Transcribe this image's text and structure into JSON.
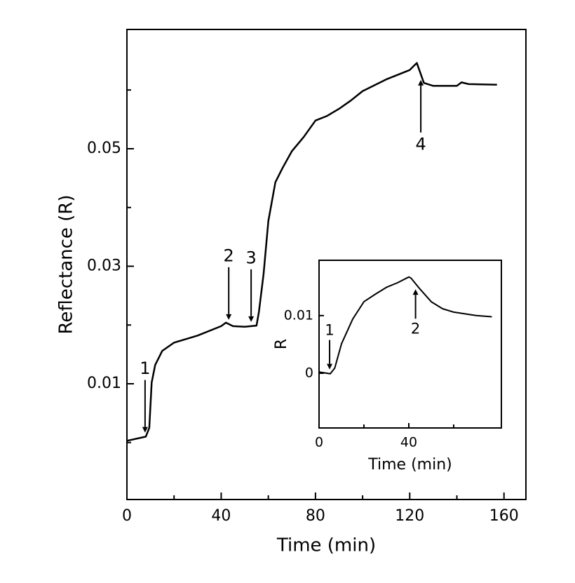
{
  "chart_data": [
    {
      "type": "line",
      "xlabel": "Time (min)",
      "ylabel": "Reflectance (R)",
      "color": "#000000",
      "x": [
        0,
        8,
        9.5,
        10.5,
        12,
        15,
        20,
        30,
        40,
        42,
        45,
        50,
        55,
        56,
        58,
        60,
        63,
        66,
        70,
        75,
        80,
        85,
        90,
        95,
        100,
        110,
        120,
        123,
        126,
        130,
        140,
        142,
        145,
        157
      ],
      "values": [
        0.0003,
        0.001,
        0.0025,
        0.0102,
        0.0132,
        0.0156,
        0.017,
        0.0182,
        0.0198,
        0.0204,
        0.0198,
        0.0197,
        0.0199,
        0.0222,
        0.0287,
        0.0377,
        0.0443,
        0.0467,
        0.0496,
        0.052,
        0.0548,
        0.0556,
        0.0568,
        0.0582,
        0.0598,
        0.0618,
        0.0634,
        0.0646,
        0.0612,
        0.0607,
        0.0607,
        0.0613,
        0.061,
        0.0609
      ],
      "xlim": [
        0,
        169.3
      ],
      "ylim": [
        -0.0097,
        0.0703
      ],
      "xticks": [
        0,
        40,
        80,
        120,
        160
      ],
      "xminorticks": [
        20,
        60,
        100,
        140
      ],
      "yticks": [
        0.01,
        0.03,
        0.05
      ],
      "yminorticks": [
        0,
        0.02,
        0.04,
        0.06
      ],
      "annotations": [
        {
          "text": "1",
          "x": 7.7,
          "arrow": "down"
        },
        {
          "text": "2",
          "x": 43.2,
          "arrow": "down"
        },
        {
          "text": "3",
          "x": 52.7,
          "arrow": "down"
        },
        {
          "text": "4",
          "x": 124.7,
          "arrow": "up"
        }
      ]
    },
    {
      "type": "line",
      "xlabel": "Time (min)",
      "ylabel": "R",
      "color": "#000000",
      "x": [
        0,
        5,
        7,
        10,
        15,
        20,
        25,
        30,
        35,
        40,
        41,
        45,
        50,
        55,
        60,
        70,
        77
      ],
      "values": [
        0.0002,
        -0.0001,
        0.0009,
        0.0051,
        0.0094,
        0.0124,
        0.0137,
        0.0149,
        0.0157,
        0.0167,
        0.0165,
        0.0146,
        0.0124,
        0.0112,
        0.0106,
        0.01,
        0.0098
      ],
      "xlim": [
        0,
        81.25
      ],
      "ylim": [
        -0.0095,
        0.0196
      ],
      "xticks": [
        0,
        40
      ],
      "xminorticks": [
        20,
        60
      ],
      "yticks": [
        0,
        0.01
      ],
      "yminorticks": [],
      "annotations": [
        {
          "text": "1",
          "x": 4.7,
          "arrow": "down"
        },
        {
          "text": "2",
          "x": 43,
          "arrow": "up"
        }
      ]
    }
  ]
}
